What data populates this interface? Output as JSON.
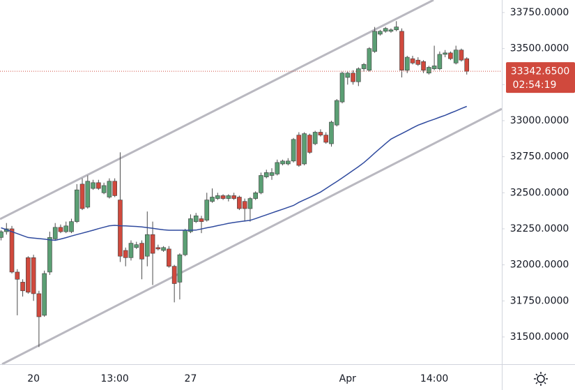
{
  "chart_data": {
    "type": "candlestick",
    "categories": [
      null,
      null,
      null,
      null,
      null,
      null,
      "20",
      null,
      null,
      null,
      null,
      null,
      null,
      null,
      null,
      null,
      null,
      null,
      null,
      null,
      null,
      "13:00",
      null,
      null,
      null,
      null,
      null,
      null,
      null,
      null,
      null,
      null,
      null,
      null,
      null,
      "27",
      null,
      null,
      null,
      null,
      null,
      null,
      null,
      null,
      null,
      null,
      null,
      null,
      null,
      null,
      null,
      null,
      null,
      null,
      null,
      null,
      null,
      null,
      null,
      null,
      null,
      null,
      null,
      null,
      "Apr",
      null,
      null,
      null,
      null,
      null,
      null,
      null,
      null,
      null,
      null,
      null,
      null,
      null,
      null,
      null,
      "14:00",
      null,
      null,
      null,
      null,
      null,
      null
    ],
    "open": [
      32190,
      32230,
      32250,
      31950,
      31880,
      32050,
      32050,
      31800,
      31650,
      31950,
      32180,
      32260,
      32230,
      32230,
      32300,
      32560,
      32400,
      32530,
      32570,
      32500,
      32470,
      32580,
      32450,
      32100,
      32050,
      32120,
      32150,
      32060,
      32210,
      32120,
      32100,
      32110,
      31990,
      31880,
      32070,
      32230,
      32300,
      32320,
      32310,
      32440,
      32460,
      32480,
      32460,
      32480,
      32470,
      32440,
      32390,
      32460,
      32500,
      32610,
      32620,
      32630,
      32700,
      32700,
      32720,
      32900,
      32700,
      32900,
      32840,
      32920,
      32900,
      32840,
      32970,
      33130,
      33300,
      33330,
      33270,
      33360,
      33350,
      33480,
      33600,
      33620,
      33620,
      33630,
      33620,
      33350,
      33430,
      33420,
      33410,
      33330,
      33360,
      33360,
      33460,
      33470,
      33400,
      33490,
      33430
    ],
    "high": [
      32240,
      32290,
      32270,
      31970,
      31900,
      32060,
      32070,
      31820,
      31960,
      32230,
      32290,
      32280,
      32300,
      32320,
      32560,
      32600,
      32620,
      32590,
      32590,
      32570,
      32600,
      32600,
      32780,
      32120,
      32170,
      32160,
      32170,
      32370,
      32300,
      32140,
      32130,
      32130,
      32000,
      32080,
      32250,
      32350,
      32360,
      32340,
      32500,
      32530,
      32500,
      32490,
      32490,
      32500,
      32480,
      32460,
      32470,
      32510,
      32640,
      32660,
      32670,
      32730,
      32730,
      32740,
      32880,
      32920,
      32920,
      32910,
      32930,
      32940,
      32920,
      33000,
      33150,
      33340,
      33340,
      33350,
      33370,
      33400,
      33510,
      33650,
      33630,
      33650,
      33640,
      33690,
      33640,
      33450,
      33450,
      33440,
      33420,
      33380,
      33520,
      33480,
      33490,
      33480,
      33520,
      33500,
      33440
    ],
    "low": [
      32170,
      32210,
      31940,
      31650,
      31780,
      31800,
      31750,
      31430,
      31640,
      31930,
      32170,
      32220,
      32220,
      32220,
      32290,
      32380,
      32390,
      32520,
      32520,
      32490,
      32460,
      32470,
      32020,
      31990,
      32030,
      32110,
      31900,
      31990,
      31860,
      32100,
      32090,
      31980,
      31740,
      31760,
      32060,
      32220,
      32290,
      32220,
      32300,
      32430,
      32450,
      32450,
      32440,
      32450,
      32380,
      32300,
      32300,
      32450,
      32490,
      32600,
      32590,
      32620,
      32690,
      32690,
      32710,
      32680,
      32690,
      32770,
      32830,
      32890,
      32840,
      32820,
      32960,
      33120,
      33250,
      33250,
      33240,
      33340,
      33340,
      33470,
      33590,
      33610,
      33610,
      33620,
      33300,
      33330,
      33390,
      33380,
      33330,
      33320,
      33350,
      33350,
      33440,
      33420,
      33390,
      33410,
      33320
    ],
    "close": [
      32230,
      32250,
      31950,
      31900,
      31820,
      31810,
      31800,
      31640,
      31940,
      32190,
      32260,
      32230,
      32270,
      32300,
      32520,
      32390,
      32580,
      32570,
      32530,
      32550,
      32580,
      32480,
      32060,
      32050,
      32150,
      32140,
      32040,
      32210,
      32080,
      32110,
      32120,
      31990,
      31870,
      32070,
      32240,
      32320,
      32340,
      32300,
      32450,
      32470,
      32480,
      32460,
      32480,
      32460,
      32390,
      32390,
      32460,
      32500,
      32620,
      32640,
      32640,
      32710,
      32720,
      32720,
      32870,
      32690,
      32910,
      32780,
      32920,
      32900,
      32850,
      32990,
      33140,
      33330,
      33330,
      33270,
      33360,
      33390,
      33500,
      33620,
      33620,
      33640,
      33630,
      33650,
      33350,
      33440,
      33400,
      33390,
      33350,
      33370,
      33380,
      33460,
      33470,
      33430,
      33490,
      33420,
      33342.65
    ],
    "up_color": "#5b9f74",
    "down_color": "#d0493d",
    "moving_average": {
      "color": "#2f4a9e",
      "values": [
        32257,
        32244,
        32230,
        32217,
        32203,
        32190,
        32186,
        32182,
        32178,
        32174,
        32170,
        32179,
        32189,
        32200,
        32210,
        32220,
        32230,
        32240,
        32251,
        32261,
        32271,
        32274,
        32271,
        32270,
        32268,
        32266,
        32263,
        32258,
        32253,
        32248,
        32243,
        32240,
        32240,
        32240,
        32240,
        32240,
        32241,
        32249,
        32257,
        32264,
        32272,
        32280,
        32288,
        32294,
        32299,
        32304,
        32309,
        32321,
        32334,
        32347,
        32360,
        32373,
        32386,
        32399,
        32412,
        32433,
        32451,
        32468,
        32486,
        32505,
        32529,
        32554,
        32578,
        32603,
        32629,
        32655,
        32681,
        32709,
        32742,
        32776,
        32808,
        32841,
        32872,
        32892,
        32911,
        32930,
        32950,
        32969,
        32983,
        32997,
        33010,
        33024,
        33037,
        33053,
        33068,
        33084,
        33099
      ]
    },
    "last_price": {
      "value": 33342.65,
      "label": "33342.6500"
    },
    "countdown": "02:54:19",
    "ylim": [
      31311,
      33837
    ],
    "yticks": [
      {
        "value": 31500,
        "label": "31500.0000"
      },
      {
        "value": 31750,
        "label": "31750.0000"
      },
      {
        "value": 32000,
        "label": "32000.0000"
      },
      {
        "value": 32250,
        "label": "32250.0000"
      },
      {
        "value": 32500,
        "label": "32500.0000"
      },
      {
        "value": 32750,
        "label": "32750.0000"
      },
      {
        "value": 33000,
        "label": "33000.0000"
      },
      {
        "value": 33250,
        "label": "33250.0000"
      },
      {
        "value": 33500,
        "label": "33500.0000"
      },
      {
        "value": 33750,
        "label": "33750.0000"
      }
    ],
    "grid": false
  }
}
